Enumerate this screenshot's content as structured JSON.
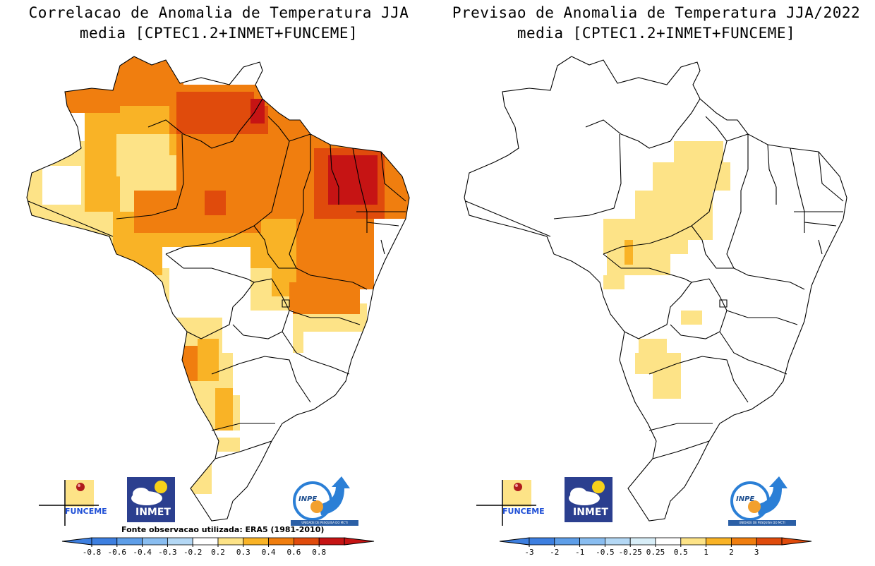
{
  "panels": [
    {
      "title_line1": "Correlacao de Anomalia de Temperatura JJA",
      "title_line2": "media [CPTEC1.2+INMET+FUNCEME]",
      "source_note": "Fonte observacao utilizada: ERA5 (1981-2010)",
      "colorbar": {
        "tick_labels": [
          "-0.8",
          "-0.6",
          "-0.4",
          "-0.3",
          "-0.2",
          "0.2",
          "0.3",
          "0.4",
          "0.6",
          "0.8"
        ],
        "colors": [
          "#3d7fe0",
          "#5e9ee8",
          "#89bdf0",
          "#b4d8f5",
          "#ffffff",
          "#fde387",
          "#f9b326",
          "#f07e0f",
          "#e04b0c",
          "#c61414"
        ]
      },
      "map_fields": [
        {
          "level": "0.2-0.3",
          "color": "#fde387"
        },
        {
          "level": "0.3-0.4",
          "color": "#f9b326"
        },
        {
          "level": "0.4-0.6",
          "color": "#f07e0f"
        },
        {
          "level": "0.6-0.8",
          "color": "#e04b0c"
        },
        {
          "level": ">0.8",
          "color": "#c61414"
        }
      ]
    },
    {
      "title_line1": "Previsao de Anomalia de Temperatura JJA/2022",
      "title_line2": "media [CPTEC1.2+INMET+FUNCEME]",
      "colorbar": {
        "tick_labels": [
          "-3",
          "-2",
          "-1",
          "-0.5",
          "-0.25",
          "0.25",
          "0.5",
          "1",
          "2",
          "3"
        ],
        "colors": [
          "#3d7fe0",
          "#5e9ee8",
          "#89bdf0",
          "#b4d8f5",
          "#d8eef8",
          "#ffffff",
          "#fde387",
          "#f9b326",
          "#f07e0f",
          "#e04b0c"
        ]
      },
      "map_fields": [
        {
          "level": "0.25-0.5",
          "color": "#fde387"
        },
        {
          "level": "0.5-1",
          "color": "#f9b326"
        }
      ]
    }
  ],
  "logos": {
    "funceme": "FUNCEME",
    "inmet": "INMET",
    "inpe": "INPE",
    "inpe_sub": "UNIDADE DE PESQUISA DO MCTI"
  }
}
